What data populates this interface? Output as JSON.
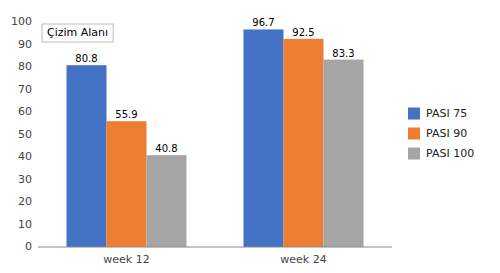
{
  "chart_data": {
    "type": "bar",
    "categories": [
      "week 12",
      "week 24"
    ],
    "series": [
      {
        "name": "PASI 75",
        "color": "#4472C4",
        "values": [
          80.8,
          96.7
        ]
      },
      {
        "name": "PASI 90",
        "color": "#ED7D31",
        "values": [
          55.9,
          92.5
        ]
      },
      {
        "name": "PASI 100",
        "color": "#A5A5A5",
        "values": [
          40.8,
          83.3
        ]
      }
    ],
    "ylim": [
      0,
      100
    ],
    "yticks": [
      0,
      10,
      20,
      30,
      40,
      50,
      60,
      70,
      80,
      90,
      100
    ],
    "annotations": [
      "Çizim Alanı"
    ],
    "data_labels": true,
    "grid": false,
    "legend": "right"
  }
}
